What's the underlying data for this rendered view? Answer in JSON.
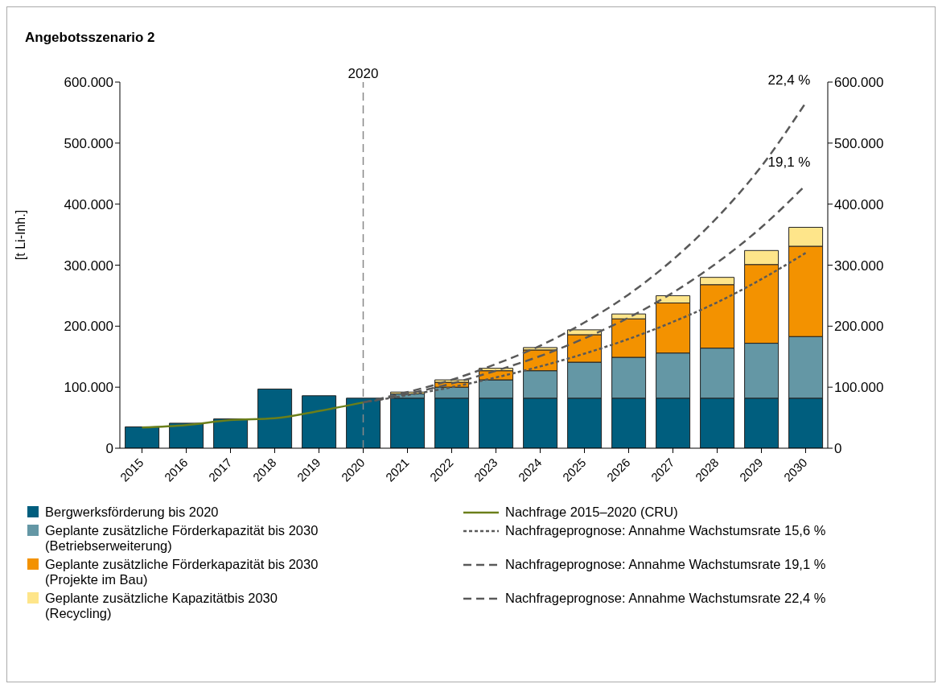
{
  "chart_data": {
    "type": "bar",
    "title": "Angebotsszenario 2",
    "ylabel": "[t Li-Inh.]",
    "categories": [
      "2015",
      "2016",
      "2017",
      "2018",
      "2019",
      "2020",
      "2021",
      "2022",
      "2023",
      "2024",
      "2025",
      "2026",
      "2027",
      "2028",
      "2029",
      "2030"
    ],
    "stacked": true,
    "series": [
      {
        "name": "Bergwerksförderung bis 2020",
        "color": "#005e7e",
        "values": [
          35000,
          41000,
          48000,
          97000,
          86000,
          82000,
          82000,
          82000,
          82000,
          82000,
          82000,
          82000,
          82000,
          82000,
          82000,
          82000
        ]
      },
      {
        "name": "Geplante zusätzliche Förderkapazität bis 2030 (Betriebserweiterung)",
        "color": "#6497a5",
        "values": [
          null,
          null,
          null,
          null,
          null,
          null,
          7000,
          18000,
          30000,
          45000,
          59000,
          67000,
          74000,
          82000,
          90000,
          101000
        ]
      },
      {
        "name": "Geplante zusätzliche Förderkapazität bis 2030 (Projekte im Bau)",
        "color": "#f39200",
        "values": [
          null,
          null,
          null,
          null,
          null,
          null,
          null,
          8000,
          15000,
          34000,
          45000,
          63000,
          82000,
          104000,
          129000,
          148000
        ]
      },
      {
        "name": "Geplante zusätzliche Kapazitätbis 2030 (Recycling)",
        "color": "#fee58a",
        "values": [
          null,
          null,
          null,
          null,
          null,
          null,
          3000,
          4000,
          4000,
          4000,
          8000,
          8000,
          12000,
          12000,
          23000,
          31000
        ]
      },
      {
        "name": "Nachfrage 2015–2020 (CRU)",
        "type": "line",
        "color": "#6b7f1a",
        "line_style": "solid",
        "values": [
          34000,
          38000,
          46000,
          49000,
          61000,
          75000,
          null,
          null,
          null,
          null,
          null,
          null,
          null,
          null,
          null,
          null
        ]
      },
      {
        "name": "Nachfrageprognose: Annahme Wachstumsrate 15,6 %",
        "type": "line",
        "color": "#595959",
        "line_style": "dotted",
        "values": [
          null,
          null,
          null,
          null,
          null,
          75000,
          87000,
          100000,
          116000,
          134000,
          155000,
          179000,
          207000,
          239000,
          277000,
          320000
        ]
      },
      {
        "name": "Nachfrageprognose: Annahme Wachstumsrate 19,1 %",
        "type": "line",
        "color": "#595959",
        "line_style": "dashed",
        "values": [
          null,
          null,
          null,
          null,
          null,
          75000,
          89000,
          106000,
          127000,
          151000,
          180000,
          214000,
          255000,
          304000,
          362000,
          431000
        ]
      },
      {
        "name": "Nachfrageprognose: Annahme Wachstumsrate 22,4 %",
        "type": "line",
        "color": "#595959",
        "line_style": "dashed",
        "values": [
          null,
          null,
          null,
          null,
          null,
          75000,
          92000,
          112000,
          138000,
          168000,
          206000,
          252000,
          309000,
          378000,
          462000,
          566000
        ]
      }
    ],
    "ylim": [
      0,
      600000
    ],
    "yticks": [
      0,
      {
        "value": 100000,
        "label": "100.000"
      },
      {
        "value": 200000,
        "label": "200.000"
      },
      {
        "value": 300000,
        "label": "300.000"
      },
      {
        "value": 400000,
        "label": "400.000"
      },
      {
        "value": 500000,
        "label": "500.000"
      },
      {
        "value": 600000,
        "label": "600.000"
      }
    ],
    "y2lim": [
      0,
      600000
    ],
    "y2ticks": [
      0,
      {
        "value": 100000,
        "label": "100.000"
      },
      {
        "value": 200000,
        "label": "200.000"
      },
      {
        "value": 300000,
        "label": "300.000"
      },
      {
        "value": 400000,
        "label": "400.000"
      },
      {
        "value": 500000,
        "label": "500.000"
      },
      {
        "value": 600000,
        "label": "600.000"
      }
    ],
    "ref_lines": [
      {
        "axis": "x",
        "value": "2020",
        "label": "2020",
        "color": "#888888",
        "line_style": "dashed"
      }
    ],
    "annotations": [
      {
        "text": "22,4 %",
        "x": "2030",
        "y": 566000
      },
      {
        "text": "19,1 %",
        "x": "2030",
        "y": 431000
      }
    ],
    "legend": "bottom"
  }
}
